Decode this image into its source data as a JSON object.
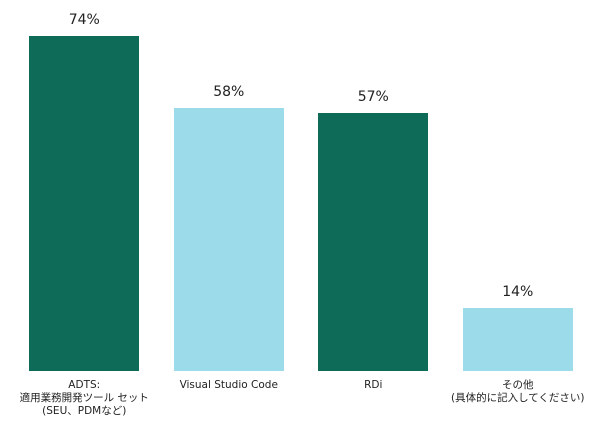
{
  "chart_data": {
    "type": "bar",
    "categories": [
      "ADTS:\n適用業務開発ツール セット\n(SEU、PDMなど)",
      "Visual Studio Code",
      "RDi",
      "その他\n(具体的に記入してください)"
    ],
    "values": [
      74,
      58,
      57,
      14
    ],
    "value_labels": [
      "74%",
      "58%",
      "57%",
      "14%"
    ],
    "colors": [
      "#0e6b58",
      "#9cdbe9",
      "#0e6b58",
      "#9cdbe9"
    ]
  }
}
